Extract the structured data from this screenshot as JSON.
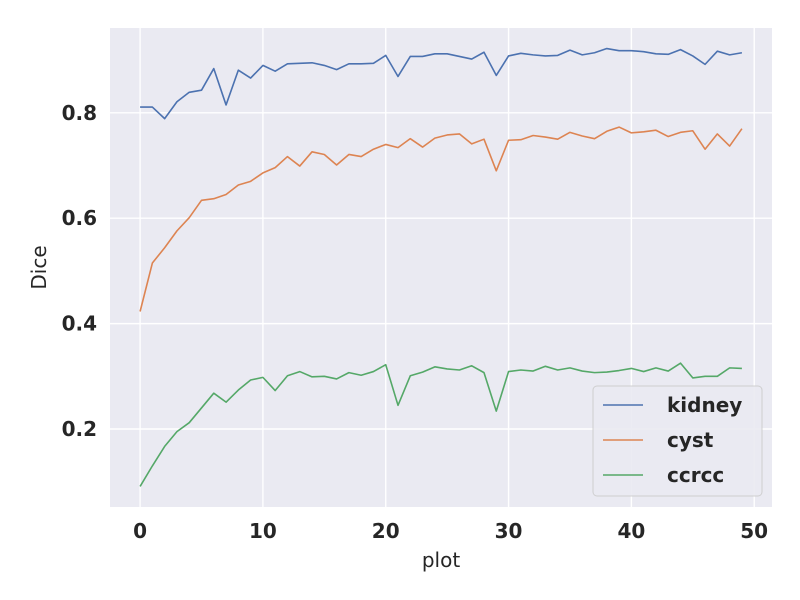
{
  "chart_data": {
    "type": "line",
    "xlabel": "plot",
    "ylabel": "Dice",
    "xlim": [
      -2.45,
      51.45
    ],
    "ylim": [
      0.052,
      0.961
    ],
    "x_ticks": [
      0,
      10,
      20,
      30,
      40,
      50
    ],
    "y_ticks": [
      0.2,
      0.4,
      0.6,
      0.8
    ],
    "x_tick_labels": [
      "0",
      "10",
      "20",
      "30",
      "40",
      "50"
    ],
    "y_tick_labels": [
      "0.2",
      "0.4",
      "0.6",
      "0.8"
    ],
    "grid": true,
    "legend_position": "lower-right",
    "background": "#eaeaf2",
    "x": [
      0,
      1,
      2,
      3,
      4,
      5,
      6,
      7,
      8,
      9,
      10,
      11,
      12,
      13,
      14,
      15,
      16,
      17,
      18,
      19,
      20,
      21,
      22,
      23,
      24,
      25,
      26,
      27,
      28,
      29,
      30,
      31,
      32,
      33,
      34,
      35,
      36,
      37,
      38,
      39,
      40,
      41,
      42,
      43,
      44,
      45,
      46,
      47,
      48,
      49
    ],
    "series": [
      {
        "name": "kidney",
        "color": "#4c72b0",
        "values": [
          0.811,
          0.811,
          0.789,
          0.821,
          0.839,
          0.843,
          0.884,
          0.815,
          0.881,
          0.866,
          0.89,
          0.879,
          0.893,
          0.894,
          0.895,
          0.89,
          0.882,
          0.893,
          0.893,
          0.894,
          0.909,
          0.869,
          0.907,
          0.907,
          0.912,
          0.912,
          0.907,
          0.902,
          0.915,
          0.871,
          0.908,
          0.913,
          0.91,
          0.908,
          0.909,
          0.919,
          0.91,
          0.914,
          0.922,
          0.918,
          0.918,
          0.916,
          0.912,
          0.911,
          0.92,
          0.908,
          0.892,
          0.917,
          0.91,
          0.914
        ]
      },
      {
        "name": "cyst",
        "color": "#dd8452",
        "values": [
          0.423,
          0.515,
          0.544,
          0.576,
          0.601,
          0.634,
          0.637,
          0.645,
          0.663,
          0.67,
          0.686,
          0.696,
          0.717,
          0.699,
          0.726,
          0.721,
          0.701,
          0.721,
          0.717,
          0.731,
          0.74,
          0.734,
          0.751,
          0.735,
          0.752,
          0.758,
          0.76,
          0.741,
          0.75,
          0.69,
          0.748,
          0.749,
          0.757,
          0.754,
          0.75,
          0.763,
          0.756,
          0.751,
          0.765,
          0.773,
          0.762,
          0.764,
          0.767,
          0.755,
          0.763,
          0.766,
          0.731,
          0.76,
          0.737,
          0.77
        ]
      },
      {
        "name": "ccrcc",
        "color": "#55a868",
        "values": [
          0.091,
          0.13,
          0.167,
          0.195,
          0.212,
          0.24,
          0.268,
          0.251,
          0.274,
          0.293,
          0.298,
          0.273,
          0.301,
          0.309,
          0.299,
          0.3,
          0.295,
          0.307,
          0.302,
          0.309,
          0.322,
          0.245,
          0.301,
          0.308,
          0.318,
          0.314,
          0.312,
          0.32,
          0.307,
          0.234,
          0.309,
          0.312,
          0.31,
          0.319,
          0.312,
          0.316,
          0.31,
          0.307,
          0.308,
          0.311,
          0.315,
          0.309,
          0.316,
          0.31,
          0.325,
          0.297,
          0.3,
          0.3,
          0.316,
          0.315
        ]
      }
    ]
  }
}
